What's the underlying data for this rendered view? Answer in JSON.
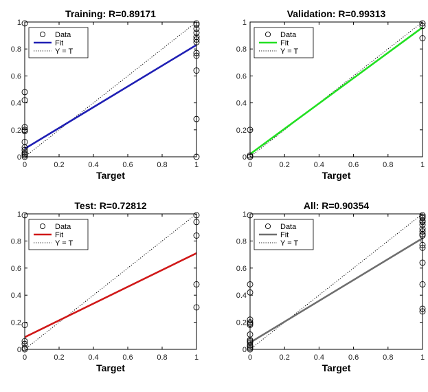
{
  "figure": {
    "legend_labels": {
      "data": "Data",
      "fit": "Fit",
      "yt": "Y = T"
    }
  },
  "chart_data": [
    {
      "type": "scatter",
      "title": "Training: R=0.89171",
      "xlabel": "Target",
      "ylabel": "",
      "xlim": [
        0,
        1
      ],
      "ylim": [
        0,
        1
      ],
      "xticks": [
        "0",
        "0.2",
        "0.4",
        "0.6",
        "0.8",
        "1"
      ],
      "yticks": [
        "0",
        "0.2",
        "0.4",
        "0.6",
        "0.8",
        "1"
      ],
      "grid": false,
      "legend_position": "top-left",
      "fit_color": "#1f1fb4",
      "series": [
        {
          "name": "Data",
          "marker": "open-circle",
          "color": "#000000",
          "x": [
            0,
            0,
            0,
            0,
            0,
            0,
            0,
            0,
            0,
            0,
            0,
            0,
            0,
            1,
            1,
            1,
            1,
            1,
            1,
            1,
            1,
            1,
            1,
            1,
            1
          ],
          "y": [
            0.99,
            0.48,
            0.42,
            0.22,
            0.2,
            0.19,
            0.11,
            0.07,
            0.05,
            0.03,
            0.02,
            0.01,
            0.0,
            0.99,
            0.98,
            0.95,
            0.92,
            0.89,
            0.87,
            0.85,
            0.77,
            0.75,
            0.64,
            0.28,
            0.0
          ]
        },
        {
          "name": "Fit",
          "type": "line",
          "x": [
            0,
            1
          ],
          "y": [
            0.06,
            0.83
          ]
        },
        {
          "name": "Y = T",
          "type": "line",
          "style": "dotted",
          "x": [
            0,
            1
          ],
          "y": [
            0,
            1
          ]
        }
      ]
    },
    {
      "type": "scatter",
      "title": "Validation: R=0.99313",
      "xlabel": "Target",
      "ylabel": "",
      "xlim": [
        0,
        1
      ],
      "ylim": [
        0,
        1
      ],
      "xticks": [
        "0",
        "0.2",
        "0.4",
        "0.6",
        "0.8",
        "1"
      ],
      "yticks": [
        "0",
        "0.2",
        "0.4",
        "0.6",
        "0.8",
        "1"
      ],
      "grid": false,
      "legend_position": "top-left",
      "fit_color": "#22e022",
      "series": [
        {
          "name": "Data",
          "marker": "open-circle",
          "color": "#000000",
          "x": [
            0,
            0,
            0,
            0,
            1,
            1,
            1
          ],
          "y": [
            0.2,
            0.01,
            0.0,
            0.0,
            0.99,
            0.97,
            0.88
          ]
        },
        {
          "name": "Fit",
          "type": "line",
          "x": [
            0,
            1
          ],
          "y": [
            0.02,
            0.96
          ]
        },
        {
          "name": "Y = T",
          "type": "line",
          "style": "dotted",
          "x": [
            0,
            1
          ],
          "y": [
            0,
            1
          ]
        }
      ]
    },
    {
      "type": "scatter",
      "title": "Test: R=0.72812",
      "xlabel": "Target",
      "ylabel": "",
      "xlim": [
        0,
        1
      ],
      "ylim": [
        0,
        1
      ],
      "xticks": [
        "0",
        "0.2",
        "0.4",
        "0.6",
        "0.8",
        "1"
      ],
      "yticks": [
        "0",
        "0.2",
        "0.4",
        "0.6",
        "0.8",
        "1"
      ],
      "grid": false,
      "legend_position": "top-left",
      "fit_color": "#d01818",
      "series": [
        {
          "name": "Data",
          "marker": "open-circle",
          "color": "#000000",
          "x": [
            0,
            0,
            0,
            0,
            0,
            0,
            1,
            1,
            1,
            1,
            1
          ],
          "y": [
            0.99,
            0.18,
            0.06,
            0.04,
            0.01,
            0.0,
            0.99,
            0.94,
            0.84,
            0.48,
            0.31
          ]
        },
        {
          "name": "Fit",
          "type": "line",
          "x": [
            0,
            1
          ],
          "y": [
            0.09,
            0.71
          ]
        },
        {
          "name": "Y = T",
          "type": "line",
          "style": "dotted",
          "x": [
            0,
            1
          ],
          "y": [
            0,
            1
          ]
        }
      ]
    },
    {
      "type": "scatter",
      "title": "All: R=0.90354",
      "xlabel": "Target",
      "ylabel": "",
      "xlim": [
        0,
        1
      ],
      "ylim": [
        0,
        1
      ],
      "xticks": [
        "0",
        "0.2",
        "0.4",
        "0.6",
        "0.8",
        "1"
      ],
      "yticks": [
        "0",
        "0.2",
        "0.4",
        "0.6",
        "0.8",
        "1"
      ],
      "grid": false,
      "legend_position": "top-left",
      "fit_color": "#6e6e6e",
      "series": [
        {
          "name": "Data",
          "marker": "open-circle",
          "color": "#000000",
          "x": [
            0,
            0,
            0,
            0,
            0,
            0,
            0,
            0,
            0,
            0,
            0,
            0,
            0,
            0,
            0,
            1,
            1,
            1,
            1,
            1,
            1,
            1,
            1,
            1,
            1,
            1,
            1,
            1,
            1,
            1,
            1
          ],
          "y": [
            0.99,
            0.48,
            0.42,
            0.22,
            0.2,
            0.19,
            0.18,
            0.11,
            0.07,
            0.06,
            0.05,
            0.03,
            0.02,
            0.01,
            0.0,
            0.99,
            0.98,
            0.97,
            0.95,
            0.94,
            0.92,
            0.89,
            0.87,
            0.85,
            0.84,
            0.77,
            0.75,
            0.64,
            0.48,
            0.3,
            0.28
          ]
        },
        {
          "name": "Fit",
          "type": "line",
          "x": [
            0,
            1
          ],
          "y": [
            0.05,
            0.82
          ]
        },
        {
          "name": "Y = T",
          "type": "line",
          "style": "dotted",
          "x": [
            0,
            1
          ],
          "y": [
            0,
            1
          ]
        }
      ]
    }
  ]
}
